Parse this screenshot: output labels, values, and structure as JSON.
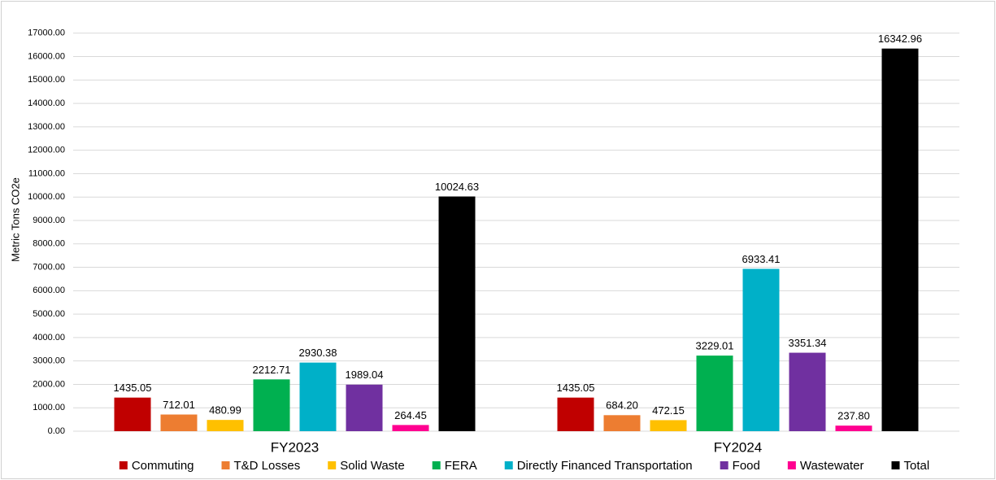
{
  "chart_data": {
    "type": "bar",
    "y_label": "Metric Tons CO2e",
    "categories": [
      "FY2023",
      "FY2024"
    ],
    "series": [
      {
        "name": "Commuting",
        "color": "#c00000",
        "values": [
          1435.05,
          1435.05
        ],
        "value_labels": [
          "1435.05",
          "1435.05"
        ]
      },
      {
        "name": "T&D Losses",
        "color": "#ed7d31",
        "values": [
          712.01,
          684.2
        ],
        "value_labels": [
          "712.01",
          "684.20"
        ]
      },
      {
        "name": "Solid Waste",
        "color": "#ffc000",
        "values": [
          480.99,
          472.15
        ],
        "value_labels": [
          "480.99",
          "472.15"
        ]
      },
      {
        "name": "FERA",
        "color": "#00b050",
        "values": [
          2212.71,
          3229.01
        ],
        "value_labels": [
          "2212.71",
          "3229.01"
        ]
      },
      {
        "name": "Directly Financed Transportation",
        "color": "#00b0c8",
        "values": [
          2930.38,
          6933.41
        ],
        "value_labels": [
          "2930.38",
          "6933.41"
        ]
      },
      {
        "name": "Food",
        "color": "#7030a0",
        "values": [
          1989.04,
          3351.34
        ],
        "value_labels": [
          "1989.04",
          "3351.34"
        ]
      },
      {
        "name": "Wastewater",
        "color": "#ff0090",
        "values": [
          264.45,
          237.8
        ],
        "value_labels": [
          "264.45",
          "237.80"
        ]
      },
      {
        "name": "Total",
        "color": "#000000",
        "values": [
          10024.63,
          16342.96
        ],
        "value_labels": [
          "10024.63",
          "16342.96"
        ]
      }
    ],
    "ylim": [
      0,
      18000
    ],
    "yticks": [
      {
        "value": 0,
        "label": "0.00"
      },
      {
        "value": 1000,
        "label": "1000.00"
      },
      {
        "value": 2000,
        "label": "2000.00"
      },
      {
        "value": 3000,
        "label": "3000.00"
      },
      {
        "value": 4000,
        "label": "4000.00"
      },
      {
        "value": 5000,
        "label": "5000.00"
      },
      {
        "value": 6000,
        "label": "6000.00"
      },
      {
        "value": 7000,
        "label": "7000.00"
      },
      {
        "value": 8000,
        "label": "8000.00"
      },
      {
        "value": 9000,
        "label": "9000.00"
      },
      {
        "value": 10000,
        "label": "10000.00"
      },
      {
        "value": 11000,
        "label": "11000.00"
      },
      {
        "value": 12000,
        "label": "12000.00"
      },
      {
        "value": 13000,
        "label": "13000.00"
      },
      {
        "value": 14000,
        "label": "14000.00"
      },
      {
        "value": 15000,
        "label": "15000.00"
      },
      {
        "value": 16000,
        "label": "16000.00"
      },
      {
        "value": 17000,
        "label": "17000.00"
      }
    ],
    "grid": true,
    "legend": "bottom"
  }
}
